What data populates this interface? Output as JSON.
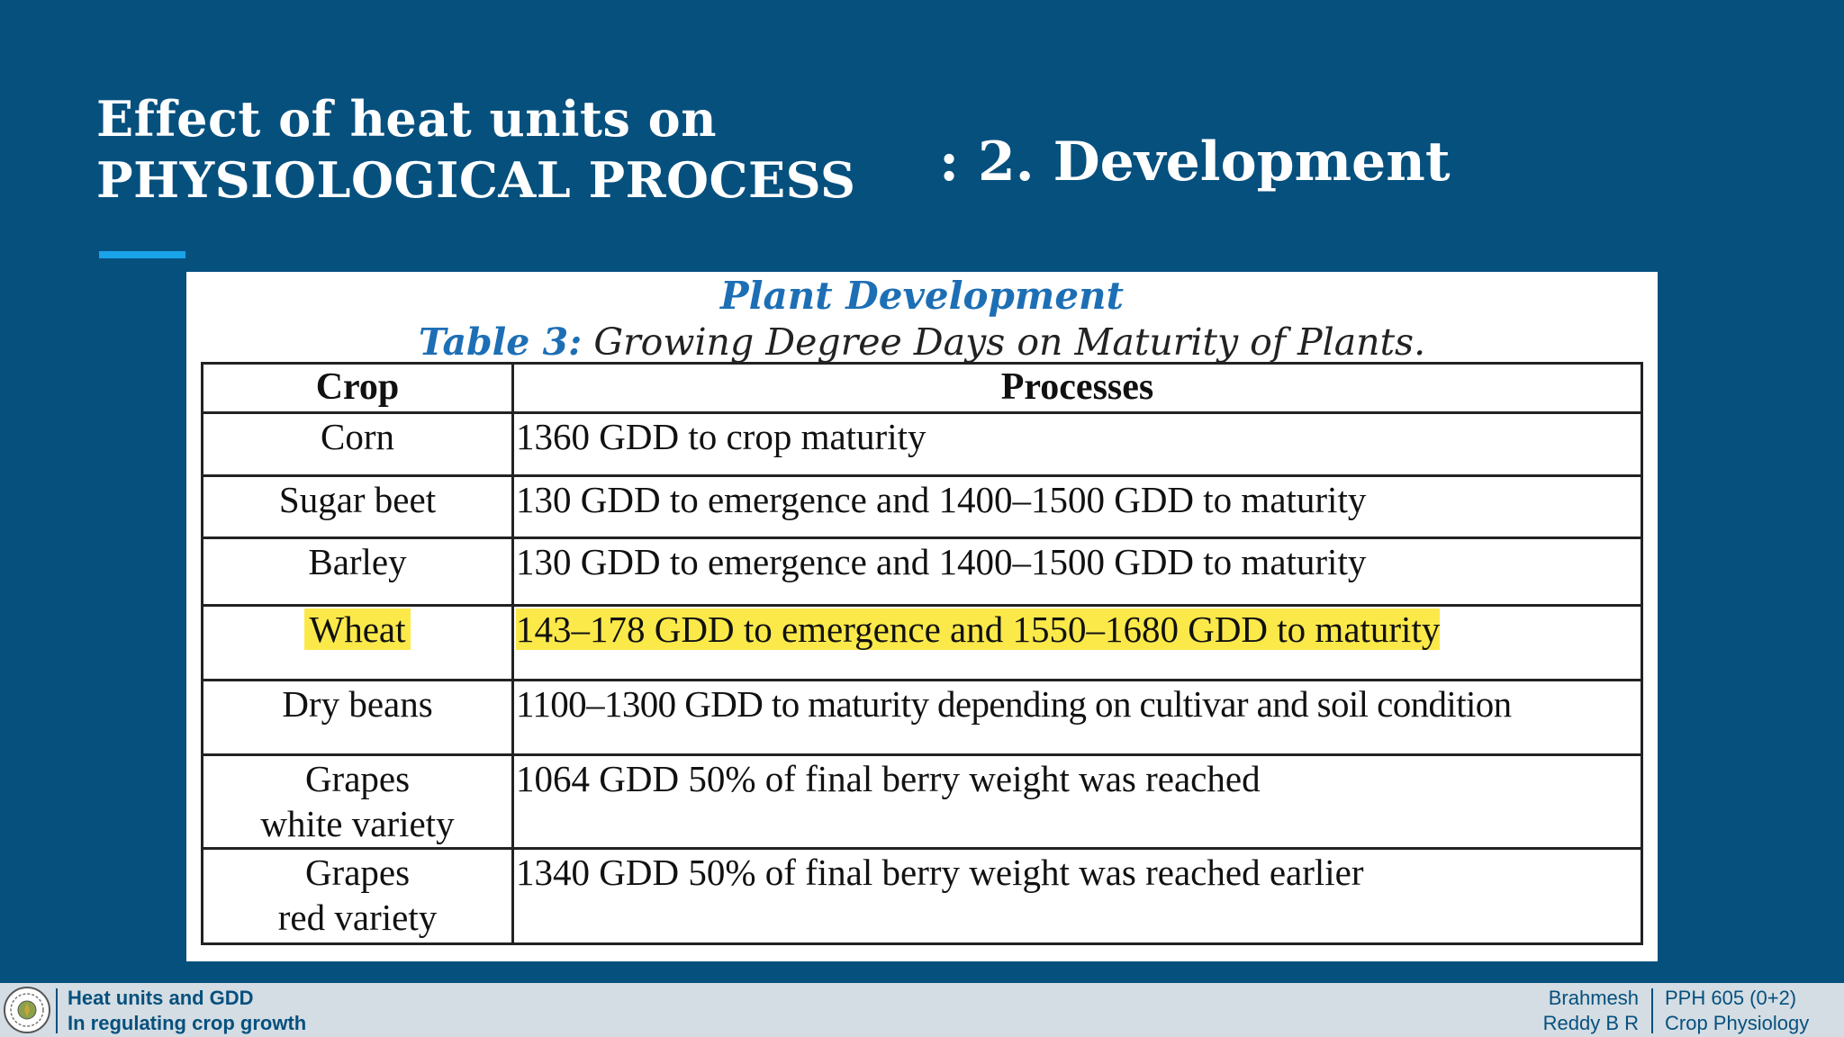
{
  "slide": {
    "title_line1": "Effect of heat units on",
    "title_line2": "PHYSIOLOGICAL PROCESS",
    "subtitle": ": 2. Development"
  },
  "figure": {
    "heading": "Plant Development",
    "caption_label": "Table 3:",
    "caption_text": " Growing Degree Days on Maturity of Plants.",
    "columns": [
      "Crop",
      "Processes"
    ],
    "rows": [
      {
        "crop": "Corn",
        "process": "1360 GDD to crop maturity"
      },
      {
        "crop": "Sugar beet",
        "process": "130 GDD to emergence and 1400–1500 GDD to maturity"
      },
      {
        "crop": "Barley",
        "process": "130 GDD to emergence and 1400–1500 GDD to maturity"
      },
      {
        "crop": "Wheat",
        "process": "143–178 GDD to emergence and 1550–1680 GDD to maturity",
        "highlighted": true
      },
      {
        "crop": "Dry beans",
        "process": "1100–1300 GDD to maturity depending on cultivar and soil condition"
      },
      {
        "crop_line1": "Grapes",
        "crop_line2": "white variety",
        "process": "1064 GDD 50% of final berry weight was reached"
      },
      {
        "crop_line1": "Grapes",
        "crop_line2": "red variety",
        "process": "1340 GDD 50% of final berry weight was reached earlier"
      }
    ],
    "highlight_color": "#fbe94a"
  },
  "footer": {
    "topic_line1": "Heat units and GDD",
    "topic_line2": "In regulating crop growth",
    "author_line1": "Brahmesh",
    "author_line2": "Reddy B R",
    "course_line1": "PPH 605 (0+2)",
    "course_line2": "Crop Physiology",
    "logo_icon": "university-seal-icon"
  },
  "colors": {
    "background": "#06507e",
    "accent": "#1aa3e8",
    "heading_blue": "#1d6fb5",
    "footer_bg": "#d4dde3"
  }
}
